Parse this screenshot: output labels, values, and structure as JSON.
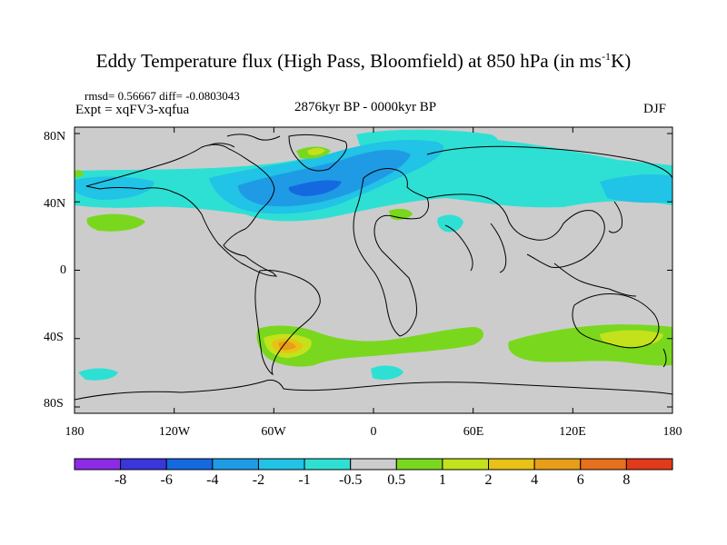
{
  "title": {
    "before_sup": "Eddy Temperature flux (High Pass, Bloomfield) at 850 hPa (in ms",
    "sup": "-1",
    "after_sup": "K)"
  },
  "stats": "rmsd= 0.56667  diff= -0.0803043",
  "expt": "Expt = xqFV3-xqfua",
  "period": "2876kyr BP - 0000kyr BP",
  "season": "DJF",
  "lat_labels": [
    "80N",
    "40N",
    "0",
    "40S",
    "80S"
  ],
  "lon_labels": [
    "180",
    "120W",
    "60W",
    "0",
    "60E",
    "120E",
    "180"
  ],
  "colorbar": {
    "labels": [
      "-8",
      "-6",
      "-4",
      "-2",
      "-1",
      "-0.5",
      "0.5",
      "1",
      "2",
      "4",
      "6",
      "8"
    ],
    "colors": [
      "#8c2be6",
      "#3b35dc",
      "#1469e0",
      "#1f9be6",
      "#21c3e6",
      "#2ee0d4",
      "#cccccc",
      "#79d81e",
      "#c4e21c",
      "#e8c214",
      "#e89e16",
      "#e6701c",
      "#e23a1a"
    ]
  },
  "map_colors": {
    "land_background": "#cccccc",
    "coast": "#000000"
  }
}
